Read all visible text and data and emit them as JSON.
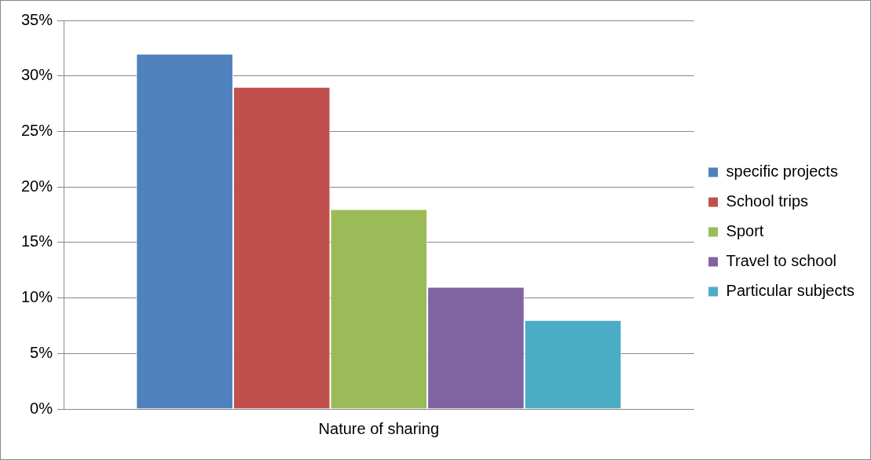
{
  "chart_data": {
    "type": "bar",
    "categories": [
      "Nature of sharing"
    ],
    "series": [
      {
        "name": "specific projects",
        "color": "#4f81bd",
        "values": [
          32
        ]
      },
      {
        "name": "School trips",
        "color": "#c0504d",
        "values": [
          29
        ]
      },
      {
        "name": "Sport",
        "color": "#9bbb59",
        "values": [
          18
        ]
      },
      {
        "name": "Travel to school",
        "color": "#8064a2",
        "values": [
          11
        ]
      },
      {
        "name": "Particular subjects",
        "color": "#4bacc6",
        "values": [
          8
        ]
      }
    ],
    "ylim": [
      0,
      35
    ],
    "yticks": [
      {
        "value": 0,
        "label": "0%"
      },
      {
        "value": 5,
        "label": "5%"
      },
      {
        "value": 10,
        "label": "10%"
      },
      {
        "value": 15,
        "label": "15%"
      },
      {
        "value": 20,
        "label": "20%"
      },
      {
        "value": 25,
        "label": "25%"
      },
      {
        "value": 30,
        "label": "30%"
      },
      {
        "value": 35,
        "label": "35%"
      }
    ],
    "grid": "y",
    "legend": "right"
  }
}
